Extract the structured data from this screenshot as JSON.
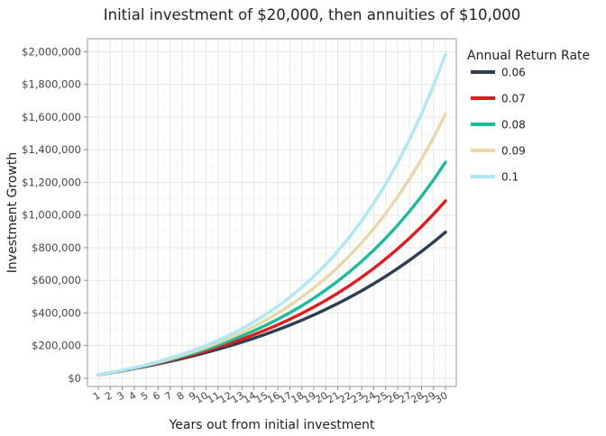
{
  "chart_data": {
    "type": "line",
    "title": "Initial investment of $20,000, then annuities of $10,000",
    "xlabel": "Years out from initial investment",
    "ylabel": "Investment Growth",
    "x": [
      1,
      2,
      3,
      4,
      5,
      6,
      7,
      8,
      9,
      10,
      11,
      12,
      13,
      14,
      15,
      16,
      17,
      18,
      19,
      20,
      21,
      22,
      23,
      24,
      25,
      26,
      27,
      28,
      29,
      30
    ],
    "ylim": [
      -50000,
      2080000
    ],
    "yticks": [
      0,
      200000,
      400000,
      600000,
      800000,
      1000000,
      1200000,
      1400000,
      1600000,
      1800000,
      2000000
    ],
    "ytick_labels": [
      "$0",
      "$200,000",
      "$400,000",
      "$600,000",
      "$800,000",
      "$1,000,000",
      "$1,200,000",
      "$1,400,000",
      "$1,600,000",
      "$1,800,000",
      "$2,000,000"
    ],
    "grid": true,
    "legend": {
      "title": "Annual Return Rate",
      "placement": "right"
    },
    "series": [
      {
        "name": "0.06",
        "color": "#2c3e50",
        "values": [
          21200,
          33072,
          45656,
          58995,
          73135,
          88123,
          104010,
          120851,
          138702,
          157624,
          177682,
          198943,
          221479,
          245368,
          270690,
          297531,
          325983,
          356142,
          388110,
          421997,
          457917,
          495992,
          536351,
          579132,
          624480,
          672549,
          723502,
          777512,
          834762,
          895448
        ]
      },
      {
        "name": "0.07",
        "color": "#e31a1c",
        "values": [
          21400,
          33598,
          46650,
          60615,
          75558,
          91547,
          108655,
          126961,
          146548,
          167506,
          189931,
          213926,
          239601,
          267073,
          296468,
          327921,
          361575,
          397586,
          436117,
          477345,
          521459,
          568661,
          619167,
          673209,
          731033,
          792905,
          859108,
          929946,
          1005742,
          1086844
        ]
      },
      {
        "name": "0.08",
        "color": "#1abc9c",
        "values": [
          21600,
          34128,
          47658,
          62271,
          78053,
          95097,
          113505,
          133385,
          154856,
          178044,
          203088,
          230135,
          259346,
          290894,
          324965,
          361762,
          401503,
          444423,
          490777,
          540839,
          594906,
          653299,
          716363,
          784472,
          858030,
          937473,
          1023271,
          1115933,
          1216008,
          1324089
        ]
      },
      {
        "name": "0.09",
        "color": "#e8d8a8",
        "values": [
          21800,
          34662,
          48682,
          63963,
          80620,
          98776,
          118566,
          140137,
          163650,
          189279,
          217214,
          247663,
          280853,
          317030,
          356463,
          399444,
          446294,
          497360,
          553022,
          613694,
          679826,
          751911,
          830483,
          916126,
          1009477,
          1111230,
          1222141,
          1343033,
          1474806,
          1618438
        ]
      },
      {
        "name": "0.1",
        "color": "#aee8f5",
        "values": [
          22000,
          35200,
          49720,
          65692,
          83261,
          102587,
          123846,
          147231,
          172954,
          201249,
          232374,
          266611,
          304272,
          345699,
          391269,
          441396,
          496536,
          557190,
          623909,
          697300,
          778030,
          866833,
          964516,
          1071968,
          1190165,
          1320181,
          1463199,
          1620519,
          1793571,
          1983928
        ]
      }
    ]
  }
}
